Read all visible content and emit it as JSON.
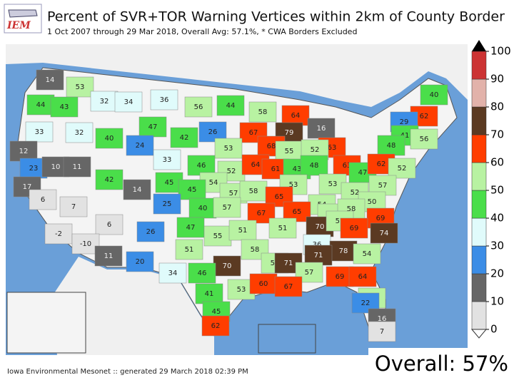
{
  "header": {
    "logo": "IEM",
    "title": "Percent of SVR+TOR Warning Vertices within 2km of County Border",
    "subtitle": "1 Oct 2007 through 29 Mar 2018, Overall Avg: 57.1%, * CWA Borders Excluded"
  },
  "map": {
    "regions": [
      14,
      53,
      32,
      34,
      36,
      56,
      44,
      58,
      64,
      40,
      62,
      29,
      44,
      43,
      33,
      32,
      40,
      47,
      42,
      26,
      67,
      79,
      16,
      63,
      41,
      48,
      56,
      12,
      24,
      33,
      68,
      55,
      52,
      53,
      23,
      10,
      11,
      42,
      14,
      45,
      46,
      52,
      64,
      61,
      43,
      48,
      63,
      47,
      62,
      52,
      54,
      45,
      57,
      58,
      53,
      53,
      57,
      17,
      6,
      7,
      25,
      40,
      57,
      65,
      54,
      51,
      52,
      50,
      67,
      65,
      58,
      69,
      6,
      -2,
      26,
      47,
      55,
      51,
      51,
      70,
      57,
      69,
      74,
      -10,
      51,
      58,
      36,
      78,
      54,
      11,
      20,
      70,
      54,
      71,
      71,
      34,
      46,
      53,
      60,
      57,
      69,
      64,
      41,
      67,
      57,
      22,
      16,
      45,
      62,
      7
    ]
  },
  "colorbar": {
    "ticks": [
      0,
      10,
      20,
      30,
      40,
      50,
      60,
      70,
      80,
      90,
      100
    ],
    "colors": [
      "#e2e2e2",
      "#666666",
      "#3b8de6",
      "#e0fbfb",
      "#4ade4a",
      "#b8f2a2",
      "#ff3d00",
      "#5b3a22",
      "#e2b2aa",
      "#cc3333"
    ]
  },
  "footer": "Iowa Environmental Mesonet :: generated 29 March 2018 02:39 PM",
  "overall": "Overall: 57%"
}
